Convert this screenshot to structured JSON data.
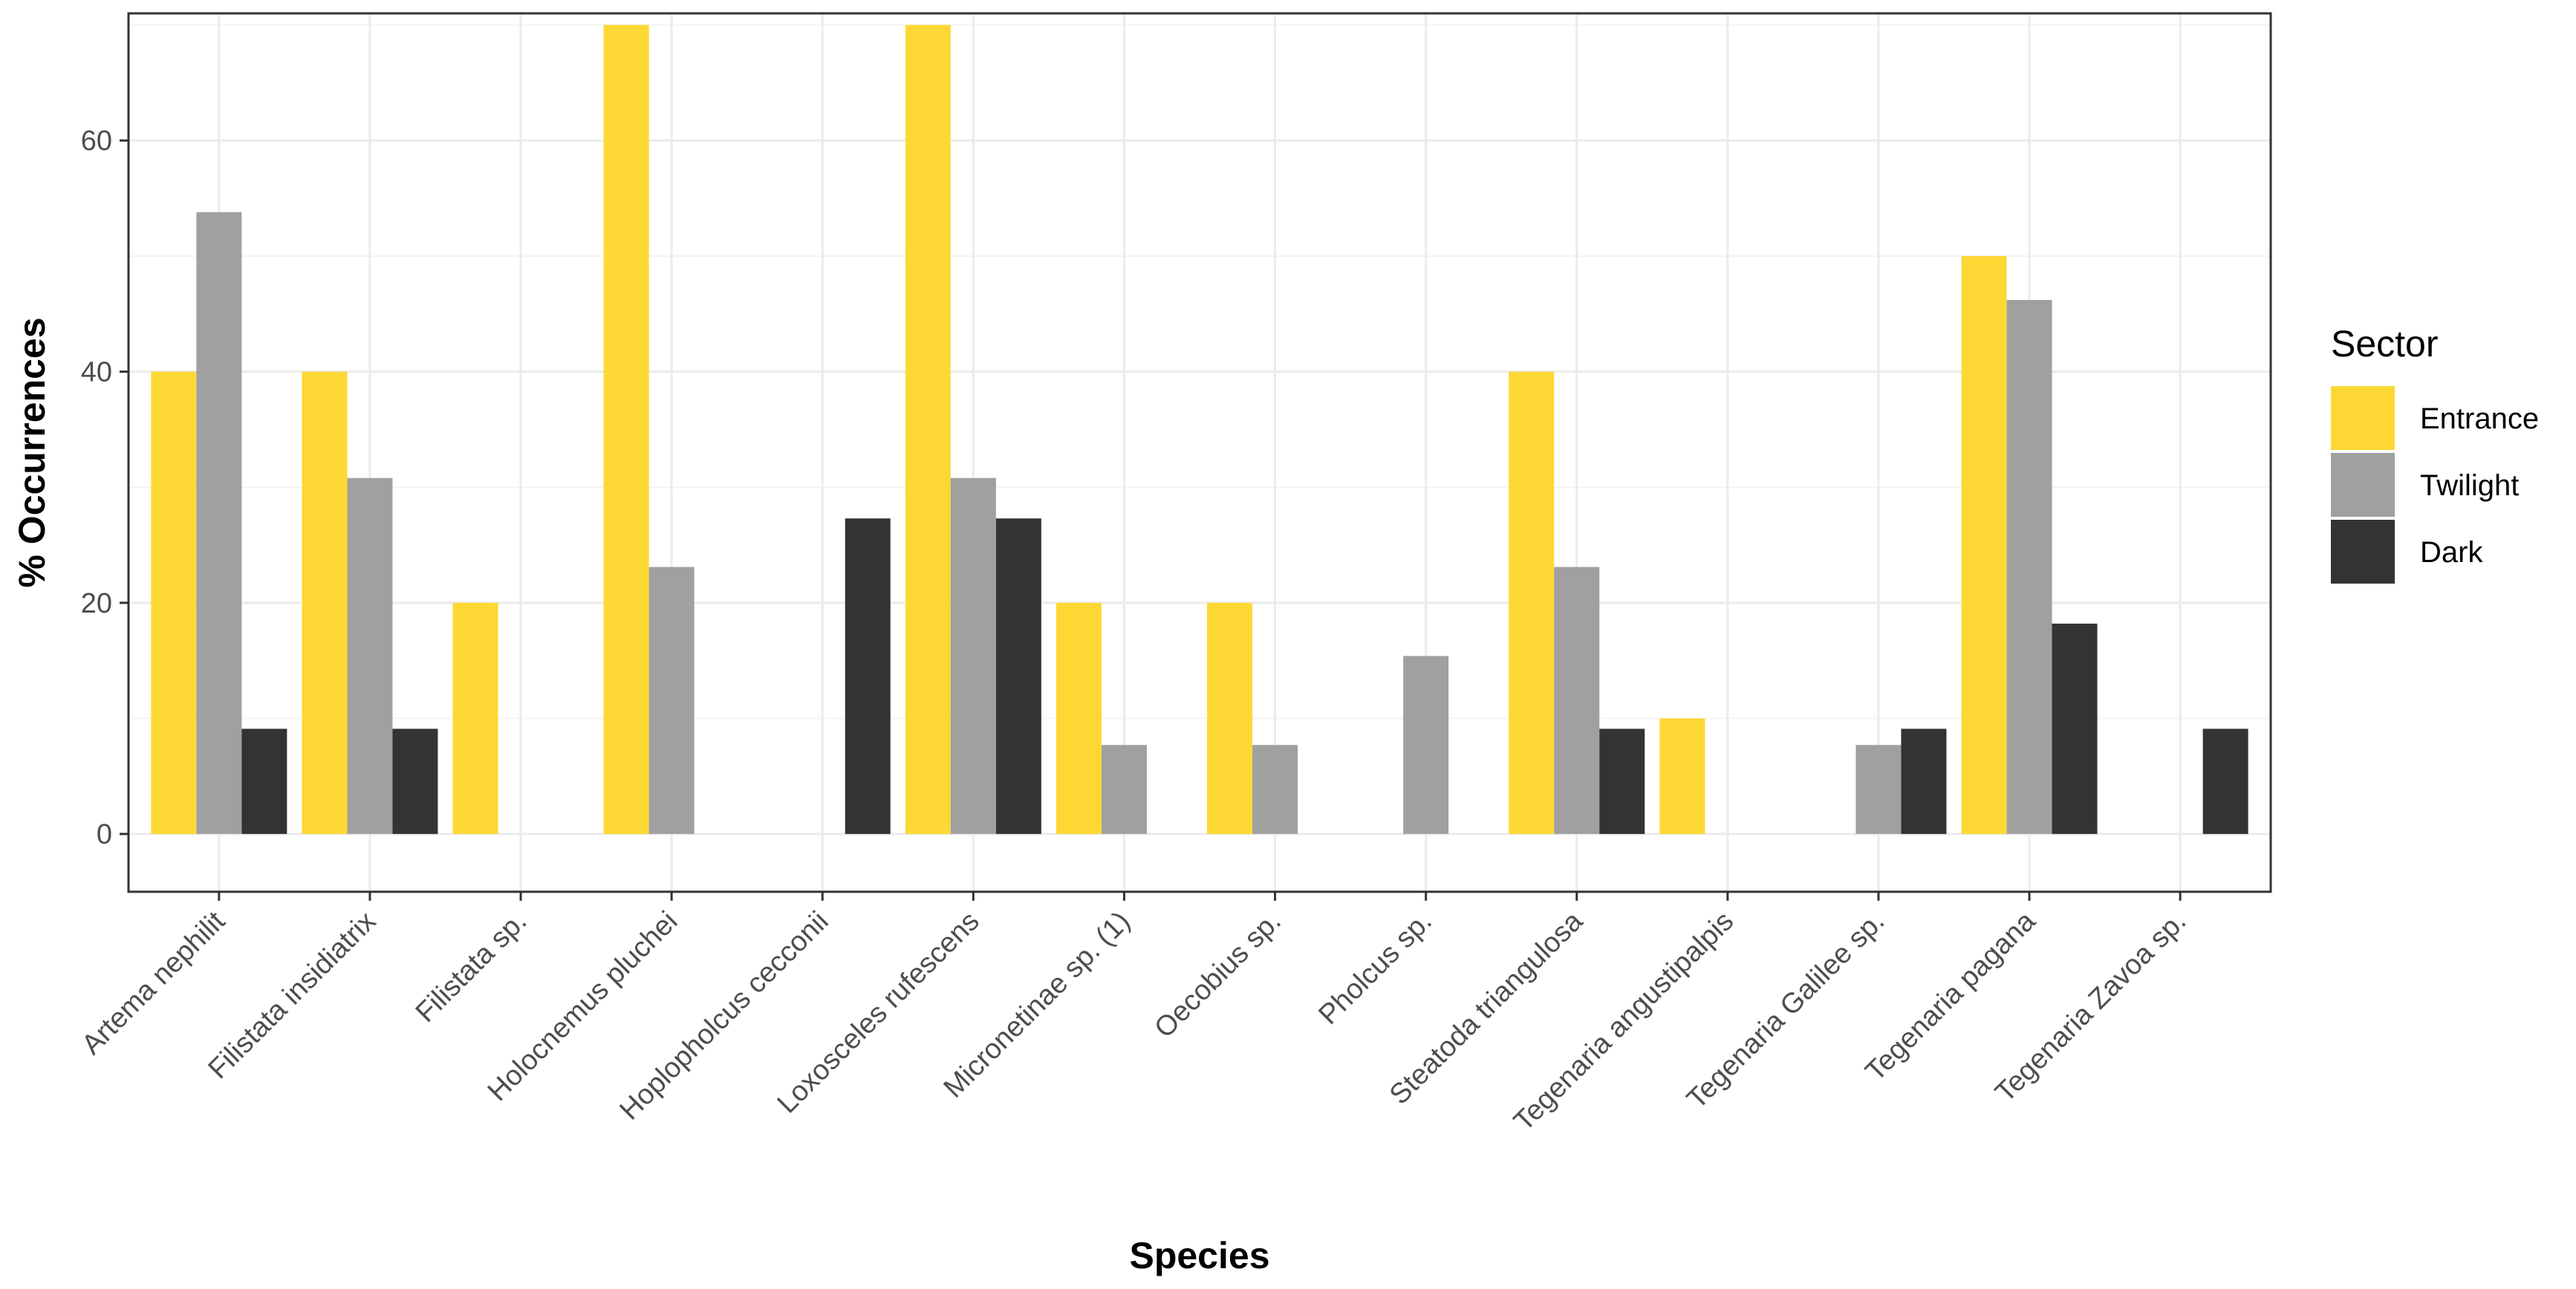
{
  "chart_data": {
    "type": "bar",
    "title": "",
    "xlabel": "Species",
    "ylabel": "% Occurrences",
    "ylim": [
      -5,
      71
    ],
    "yticks": [
      0,
      20,
      40,
      60
    ],
    "grid": true,
    "legend_title": "Sector",
    "legend_position": "right",
    "categories": [
      "Artema nephilit",
      "Filistata insidiatrix",
      "Filistata sp.",
      "Holocnemus pluchei",
      "Hoplopholcus cecconii",
      "Loxosceles rufescens",
      "Micronetinae sp. (1)",
      "Oecobius sp.",
      "Pholcus sp.",
      "Steatoda triangulosa",
      "Tegenaria angustipalpis",
      "Tegenaria Galilee sp.",
      "Tegenaria pagana",
      "Tegenaria Zavoa sp."
    ],
    "series": [
      {
        "name": "Entrance",
        "color": "#FDD835",
        "values": [
          40,
          40,
          20,
          70,
          0,
          70,
          20,
          20,
          0,
          40,
          10,
          0,
          50,
          0
        ]
      },
      {
        "name": "Twilight",
        "color": "#A0A0A0",
        "values": [
          53.8,
          30.8,
          0,
          23.1,
          0,
          30.8,
          7.7,
          7.7,
          15.4,
          23.1,
          0,
          7.7,
          46.2,
          0
        ]
      },
      {
        "name": "Dark",
        "color": "#333333",
        "values": [
          9.1,
          9.1,
          0,
          0,
          27.3,
          27.3,
          0,
          0,
          0,
          9.1,
          0,
          9.1,
          18.2,
          9.1
        ]
      }
    ]
  }
}
